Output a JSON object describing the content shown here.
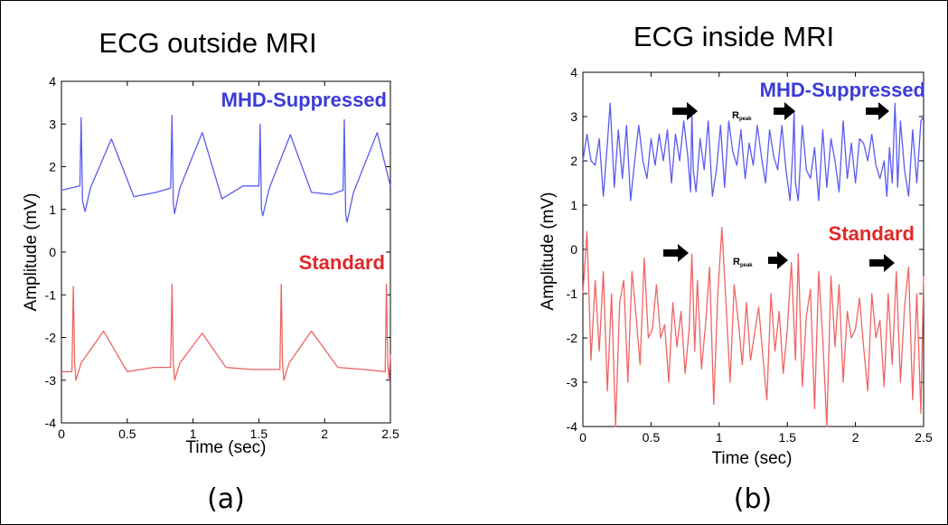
{
  "chart_data": [
    {
      "type": "line",
      "title": "ECG outside MRI",
      "xlabel": "Time (sec)",
      "ylabel": "Amplitude (mV)",
      "xlim": [
        0,
        2.5
      ],
      "ylim": [
        -4,
        4
      ],
      "x_ticks": [
        "0",
        "0.5",
        "1",
        "1.5",
        "2",
        "2.5"
      ],
      "y_ticks": [
        "-4",
        "-3",
        "-2",
        "-1",
        "0",
        "1",
        "2",
        "3",
        "4"
      ],
      "panel_label": "(a)",
      "series": [
        {
          "name": "MHD-Suppressed",
          "color": "#5b5bf0",
          "beats": [
            0.15,
            0.84,
            1.51,
            2.15
          ],
          "baseline": 1.4,
          "r_peak": 3.1,
          "s_trough": 0.8,
          "t_peak": 2.7,
          "x": [
            0,
            0.14,
            0.15,
            0.16,
            0.18,
            0.22,
            0.38,
            0.55,
            0.72,
            0.83,
            0.84,
            0.85,
            0.86,
            0.9,
            1.07,
            1.22,
            1.38,
            1.5,
            1.51,
            1.52,
            1.53,
            1.58,
            1.74,
            1.9,
            2.05,
            2.14,
            2.15,
            2.16,
            2.17,
            2.22,
            2.4,
            2.5
          ],
          "y": [
            1.45,
            1.55,
            3.15,
            1.2,
            0.95,
            1.5,
            2.65,
            1.3,
            1.4,
            1.5,
            3.2,
            1.15,
            0.9,
            1.5,
            2.8,
            1.25,
            1.55,
            1.55,
            3.0,
            1.0,
            0.85,
            1.5,
            2.75,
            1.4,
            1.35,
            1.45,
            3.1,
            0.9,
            0.7,
            1.4,
            2.8,
            1.55
          ]
        },
        {
          "name": "Standard",
          "color": "#f06464",
          "x": [
            0,
            0.08,
            0.09,
            0.1,
            0.11,
            0.15,
            0.32,
            0.5,
            0.7,
            0.83,
            0.84,
            0.85,
            0.86,
            0.9,
            1.07,
            1.25,
            1.45,
            1.66,
            1.67,
            1.68,
            1.69,
            1.73,
            1.9,
            2.1,
            2.3,
            2.46,
            2.47,
            2.48,
            2.49,
            2.5
          ],
          "y": [
            -2.8,
            -2.8,
            -0.8,
            -2.6,
            -3.0,
            -2.6,
            -1.85,
            -2.8,
            -2.7,
            -2.7,
            -0.75,
            -2.6,
            -3.0,
            -2.6,
            -1.9,
            -2.7,
            -2.75,
            -2.75,
            -0.75,
            -2.6,
            -3.0,
            -2.6,
            -1.85,
            -2.7,
            -2.75,
            -2.8,
            -0.75,
            -2.6,
            -3.0,
            -2.4
          ]
        }
      ]
    },
    {
      "type": "line",
      "title": "ECG inside MRI",
      "xlabel": "Time (sec)",
      "ylabel": "Amplitude (mV)",
      "xlim": [
        0,
        2.5
      ],
      "ylim": [
        -4,
        4
      ],
      "x_ticks": [
        "0",
        "0.5",
        "1",
        "1.5",
        "2",
        "2.5"
      ],
      "y_ticks": [
        "-4",
        "-3",
        "-2",
        "-1",
        "0",
        "1",
        "2",
        "3",
        "4"
      ],
      "panel_label": "(b)",
      "series": [
        {
          "name": "MHD-Suppressed",
          "color": "#5b5bf0",
          "x": [
            0,
            0.03,
            0.06,
            0.09,
            0.12,
            0.15,
            0.18,
            0.2,
            0.23,
            0.26,
            0.29,
            0.32,
            0.35,
            0.38,
            0.41,
            0.44,
            0.47,
            0.5,
            0.53,
            0.56,
            0.59,
            0.62,
            0.65,
            0.68,
            0.71,
            0.74,
            0.77,
            0.79,
            0.8,
            0.81,
            0.83,
            0.86,
            0.89,
            0.92,
            0.95,
            0.98,
            1.01,
            1.04,
            1.07,
            1.1,
            1.13,
            1.16,
            1.19,
            1.22,
            1.25,
            1.28,
            1.31,
            1.34,
            1.37,
            1.4,
            1.43,
            1.46,
            1.49,
            1.52,
            1.54,
            1.55,
            1.56,
            1.58,
            1.61,
            1.64,
            1.67,
            1.7,
            1.73,
            1.76,
            1.79,
            1.82,
            1.85,
            1.88,
            1.91,
            1.94,
            1.97,
            2.0,
            2.03,
            2.06,
            2.09,
            2.12,
            2.15,
            2.18,
            2.21,
            2.23,
            2.25,
            2.27,
            2.29,
            2.3,
            2.31,
            2.33,
            2.36,
            2.39,
            2.42,
            2.45,
            2.48,
            2.5
          ],
          "y": [
            2.0,
            2.6,
            2.0,
            1.9,
            2.5,
            1.2,
            2.4,
            3.3,
            1.4,
            2.7,
            1.6,
            2.8,
            1.1,
            2.0,
            2.8,
            2.0,
            1.6,
            2.5,
            1.9,
            2.6,
            2.0,
            2.7,
            1.5,
            2.6,
            2.0,
            2.9,
            2.1,
            1.3,
            3.1,
            1.8,
            1.3,
            2.5,
            1.8,
            2.9,
            1.2,
            1.8,
            2.8,
            1.4,
            2.9,
            2.2,
            1.9,
            2.7,
            1.6,
            2.4,
            1.9,
            2.8,
            2.1,
            1.5,
            2.7,
            2.1,
            1.8,
            2.8,
            1.8,
            1.1,
            2.2,
            3.1,
            1.5,
            1.1,
            2.8,
            1.8,
            1.6,
            2.3,
            1.1,
            2.7,
            1.4,
            2.5,
            2.0,
            1.3,
            2.9,
            1.6,
            2.4,
            1.5,
            2.5,
            2.4,
            2.0,
            2.6,
            1.9,
            1.6,
            2.0,
            1.2,
            2.3,
            1.5,
            3.3,
            2.5,
            1.4,
            2.9,
            1.8,
            1.2,
            2.7,
            1.5,
            2.9,
            3.0
          ]
        },
        {
          "name": "Standard",
          "color": "#f06464",
          "x": [
            0,
            0.03,
            0.06,
            0.09,
            0.12,
            0.15,
            0.18,
            0.21,
            0.24,
            0.27,
            0.3,
            0.33,
            0.36,
            0.39,
            0.42,
            0.45,
            0.48,
            0.51,
            0.54,
            0.57,
            0.6,
            0.63,
            0.66,
            0.69,
            0.72,
            0.75,
            0.78,
            0.8,
            0.82,
            0.84,
            0.87,
            0.9,
            0.93,
            0.96,
            0.99,
            1.02,
            1.05,
            1.08,
            1.11,
            1.14,
            1.17,
            1.2,
            1.23,
            1.26,
            1.29,
            1.32,
            1.35,
            1.38,
            1.41,
            1.44,
            1.47,
            1.5,
            1.53,
            1.56,
            1.58,
            1.61,
            1.64,
            1.67,
            1.7,
            1.73,
            1.76,
            1.79,
            1.82,
            1.85,
            1.88,
            1.91,
            1.94,
            1.97,
            2.0,
            2.03,
            2.06,
            2.09,
            2.12,
            2.15,
            2.18,
            2.21,
            2.24,
            2.27,
            2.3,
            2.33,
            2.36,
            2.39,
            2.42,
            2.45,
            2.48,
            2.5
          ],
          "y": [
            -1.0,
            0.4,
            -2.5,
            -0.7,
            -2.3,
            -0.5,
            -3.2,
            -1.0,
            -4.0,
            -1.2,
            -0.7,
            -3.0,
            -0.5,
            -1.5,
            -2.6,
            -0.2,
            -2.0,
            -1.8,
            -0.8,
            -2.0,
            -1.7,
            -3.0,
            -1.2,
            -2.2,
            -1.4,
            -2.8,
            -1.8,
            -0.1,
            -2.3,
            -0.7,
            -2.7,
            -1.7,
            -0.4,
            -3.5,
            -1.0,
            0.5,
            -1.2,
            -3.0,
            -0.8,
            -1.6,
            -2.6,
            -1.2,
            -2.5,
            -1.9,
            -1.3,
            -2.4,
            -3.4,
            -1.0,
            -2.3,
            -1.4,
            -2.8,
            -1.8,
            -0.3,
            -2.5,
            -0.1,
            -3.1,
            -1.5,
            -0.9,
            -3.6,
            -0.5,
            -2.0,
            -4.0,
            -0.6,
            -2.2,
            -0.8,
            -3.0,
            -1.4,
            -2.0,
            -1.8,
            -1.1,
            -2.2,
            -3.2,
            -1.0,
            -2.0,
            -1.6,
            -3.1,
            -1.0,
            -2.6,
            -0.5,
            -3.0,
            -1.3,
            -0.4,
            -3.4,
            -1.0,
            -3.7,
            -0.6
          ]
        }
      ]
    }
  ],
  "annotations": {
    "b_suppressed_label": "MHD-Suppressed",
    "b_standard_label": "Standard",
    "a_suppressed_label": "MHD-Suppressed",
    "a_standard_label": "Standard",
    "rpeak_main": "R",
    "rpeak_sub": "peak"
  }
}
